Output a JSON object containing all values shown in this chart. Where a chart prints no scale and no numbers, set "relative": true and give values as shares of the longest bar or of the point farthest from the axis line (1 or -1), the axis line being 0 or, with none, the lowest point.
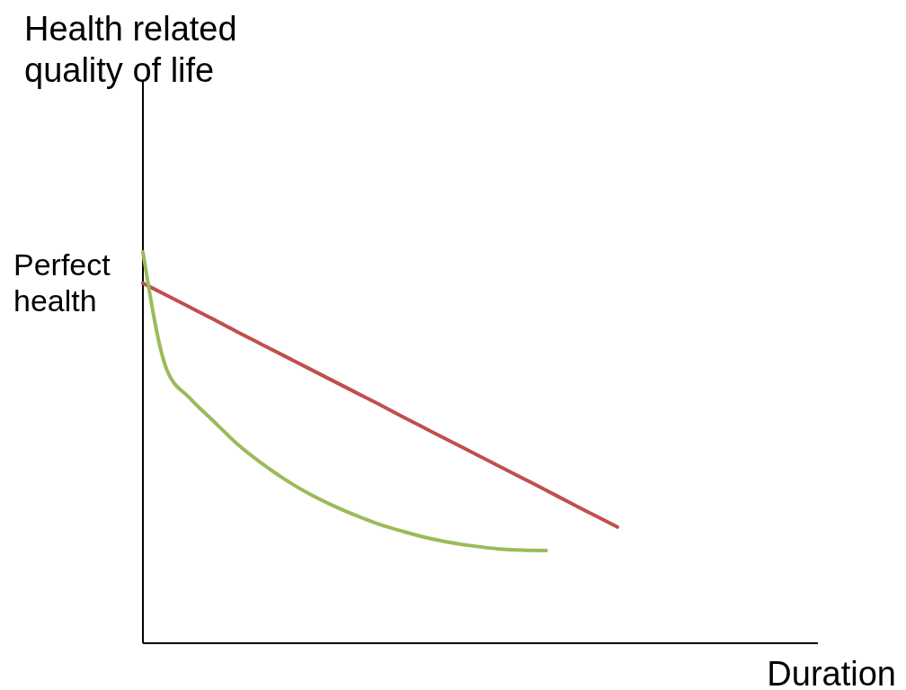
{
  "chart_data": {
    "type": "line",
    "relative": true,
    "ylabel": "Health related quality of life",
    "xlabel": "Duration",
    "categories": [
      null,
      null,
      null,
      null,
      null,
      null,
      null,
      null,
      null,
      null,
      null,
      null,
      null,
      null,
      null,
      null,
      null,
      null,
      null,
      null,
      null,
      null,
      null,
      null,
      null,
      null,
      null,
      null,
      null
    ],
    "series": [
      {
        "color": "#c0504d",
        "values": [
          0.92,
          0.889,
          0.858,
          0.827,
          0.795,
          0.764,
          0.733,
          0.702,
          0.671,
          0.64,
          0.609,
          0.577,
          0.546,
          0.515,
          0.484,
          0.453,
          0.422,
          0.391,
          0.359,
          0.328,
          0.297,
          null,
          null,
          null,
          null,
          null,
          null,
          null,
          null
        ]
      },
      {
        "color": "#9bbb59",
        "values": [
          1.0,
          0.7,
          0.625,
          0.566,
          0.508,
          0.46,
          0.418,
          0.382,
          0.352,
          0.326,
          0.303,
          0.285,
          0.269,
          0.257,
          0.248,
          0.241,
          0.238,
          0.237,
          null,
          null,
          null,
          null,
          null,
          null,
          null,
          null,
          null,
          null,
          null
        ]
      }
    ],
    "annotations": [
      "Perfect health"
    ]
  }
}
